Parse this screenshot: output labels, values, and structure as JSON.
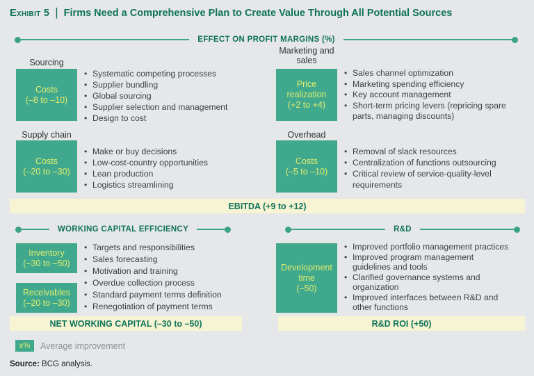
{
  "colors": {
    "background": "#e6e7e8",
    "brand_green_dark": "#0f735a",
    "divider_green": "#3aa285",
    "box_green": "#40a98d",
    "box_text_yellow": "#dfeb6e",
    "bar_yellow": "#f6f4d3",
    "body_text": "#3d4144",
    "muted_text": "#8e9194"
  },
  "header": {
    "exhibit_label": "Exhibit 5",
    "separator": "|",
    "title": "Firms Need a Comprehensive Plan to Create Value Through All Potential Sources"
  },
  "profit_margins": {
    "header": "EFFECT ON PROFIT MARGINS (%)",
    "sourcing": {
      "label": "Sourcing",
      "box_title": "Costs",
      "box_range": "(–8 to –10)",
      "bullets": [
        "Systematic competing processes",
        "Supplier bundling",
        "Global sourcing",
        "Supplier selection and management",
        "Design to cost"
      ]
    },
    "marketing": {
      "label": "Marketing and sales",
      "box_title": "Price realization",
      "box_range": "(+2 to +4)",
      "bullets": [
        "Sales channel optimization",
        "Marketing spending efficiency",
        "Key account management",
        "Short-term pricing levers (repricing spare\nparts, managing discounts)"
      ]
    },
    "supply_chain": {
      "label": "Supply chain",
      "box_title": "Costs",
      "box_range": "(–20 to –30)",
      "bullets": [
        "Make or buy decisions",
        "Low-cost-country opportunities",
        "Lean production",
        "Logistics streamlining"
      ]
    },
    "overhead": {
      "label": "Overhead",
      "box_title": "Costs",
      "box_range": "(–5 to –10)",
      "bullets": [
        "Removal of slack resources",
        "Centralization of functions outsourcing",
        "Critical review of service-quality-level\nrequirements"
      ]
    },
    "summary": "EBITDA (+9 to +12)"
  },
  "working_capital": {
    "header": "WORKING CAPITAL EFFICIENCY",
    "inventory": {
      "box_title": "Inventory",
      "box_range": "(–30 to –50)"
    },
    "receivables": {
      "box_title": "Receivables",
      "box_range": "(–20 to –30)"
    },
    "bullets": [
      "Targets and responsibilities",
      "Sales forecasting",
      "Motivation and training",
      "Overdue collection process",
      "Standard payment terms definition",
      "Renegotiation of payment terms"
    ],
    "summary": "NET WORKING CAPITAL (–30 to –50)"
  },
  "rnd": {
    "header": "R&D",
    "development": {
      "box_title": "Development time",
      "box_range": "(–50)"
    },
    "bullets": [
      "Improved portfolio management practices",
      "Improved program management\nguidelines and tools",
      "Clarified governance systems and\norganization",
      "Improved interfaces between R&D and\nother functions"
    ],
    "summary": "R&D ROI (+50)"
  },
  "legend": {
    "chip": "x%",
    "label": "Average improvement"
  },
  "source": {
    "label": "Source:",
    "text": "BCG analysis."
  }
}
